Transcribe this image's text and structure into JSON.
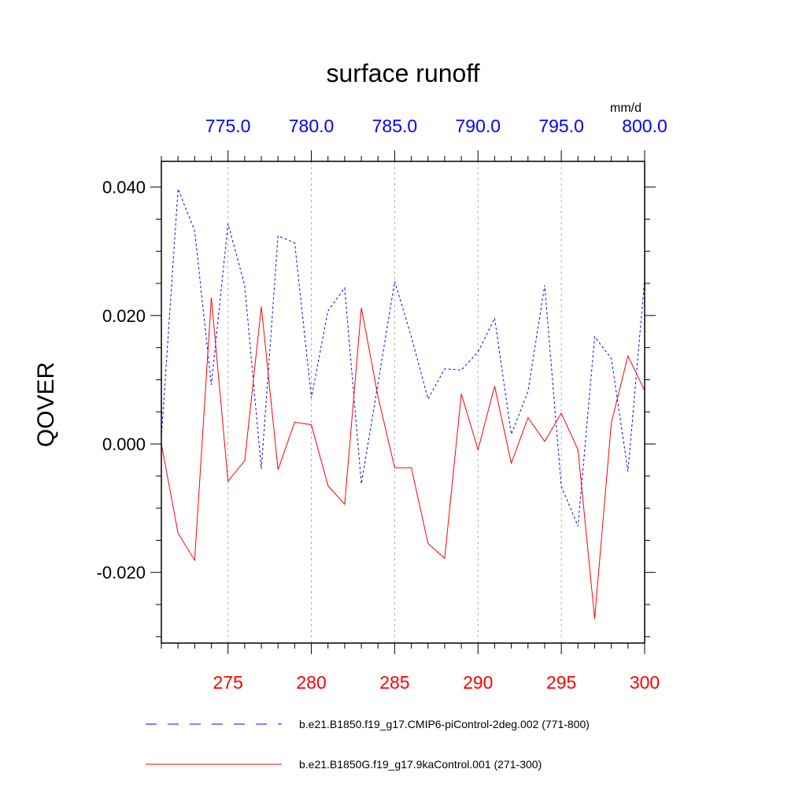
{
  "chart_data": {
    "type": "line",
    "title": "surface runoff",
    "ylabel": "QOVER",
    "units": "mm/d",
    "ylim": [
      -0.031,
      0.044
    ],
    "yticks": [
      {
        "value": 0.04,
        "label": "0.040"
      },
      {
        "value": 0.02,
        "label": "0.020"
      },
      {
        "value": 0.0,
        "label": "0.000"
      },
      {
        "value": -0.02,
        "label": "-0.020"
      }
    ],
    "x_bottom": {
      "range": [
        271,
        300
      ],
      "ticks": [
        {
          "value": 275,
          "label": "275"
        },
        {
          "value": 280,
          "label": "280"
        },
        {
          "value": 285,
          "label": "285"
        },
        {
          "value": 290,
          "label": "290"
        },
        {
          "value": 295,
          "label": "295"
        },
        {
          "value": 300,
          "label": "300"
        }
      ]
    },
    "x_top": {
      "range": [
        771,
        800
      ],
      "ticks": [
        {
          "value": 775,
          "label": "775.0"
        },
        {
          "value": 780,
          "label": "780.0"
        },
        {
          "value": 785,
          "label": "785.0"
        },
        {
          "value": 790,
          "label": "790.0"
        },
        {
          "value": 795,
          "label": "795.0"
        },
        {
          "value": 800,
          "label": "800.0"
        }
      ]
    },
    "grid": "vertical dashed at major ticks",
    "series": [
      {
        "name": "b.e21.B1850.f19_g17.CMIP6-piControl-2deg.002 (771-800)",
        "color": "#0000ff",
        "style": "dashed",
        "axis": "top",
        "x": [
          771,
          772,
          773,
          774,
          775,
          776,
          777,
          778,
          779,
          780,
          781,
          782,
          783,
          784,
          785,
          786,
          787,
          788,
          789,
          790,
          791,
          792,
          793,
          794,
          795,
          796,
          797,
          798,
          799,
          800
        ],
        "values": [
          0.001,
          0.0397,
          0.0332,
          0.0092,
          0.0343,
          0.0247,
          -0.0039,
          0.0324,
          0.0313,
          0.0072,
          0.0207,
          0.0243,
          -0.0062,
          0.0094,
          0.0253,
          0.0167,
          0.007,
          0.0117,
          0.0115,
          0.0143,
          0.0196,
          0.0015,
          0.0082,
          0.0247,
          -0.0066,
          -0.0128,
          0.0167,
          0.0133,
          -0.0043,
          0.0257
        ]
      },
      {
        "name": "b.e21.B1850G.f19_g17.9kaControl.001 (271-300)",
        "color": "#ff0000",
        "style": "solid",
        "axis": "bottom",
        "x": [
          271,
          272,
          273,
          274,
          275,
          276,
          277,
          278,
          279,
          280,
          281,
          282,
          283,
          284,
          285,
          286,
          287,
          288,
          289,
          290,
          291,
          292,
          293,
          294,
          295,
          296,
          297,
          298,
          299,
          300
        ],
        "values": [
          0.0,
          -0.0139,
          -0.0181,
          0.0228,
          -0.0058,
          -0.0026,
          0.0214,
          -0.004,
          0.0034,
          0.003,
          -0.0065,
          -0.0094,
          0.0212,
          0.0074,
          -0.0037,
          -0.0037,
          -0.0155,
          -0.0178,
          0.0078,
          -0.0009,
          0.009,
          -0.003,
          0.0041,
          0.0004,
          0.0048,
          -0.0009,
          -0.0272,
          0.0033,
          0.0137,
          0.0083
        ]
      }
    ]
  }
}
